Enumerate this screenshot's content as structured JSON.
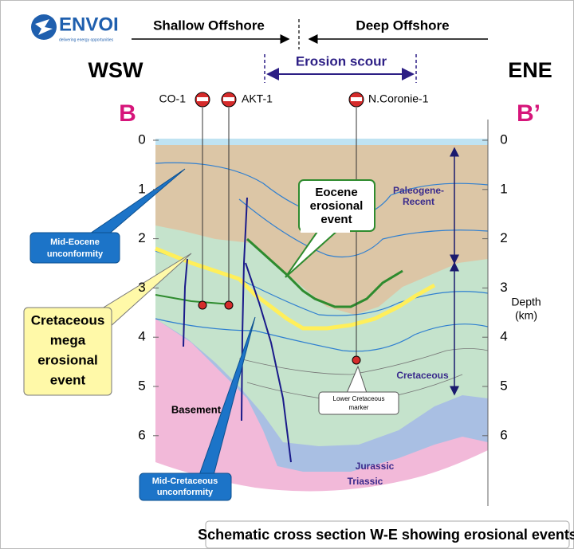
{
  "header": {
    "logo": "ENVOI",
    "tagline": "delivering energy opportunities",
    "shallow": "Shallow Offshore",
    "deep": "Deep Offshore",
    "west": "WSW",
    "east": "ENE",
    "scour": "Erosion scour",
    "section_start": "B",
    "section_end": "B’"
  },
  "wells": [
    {
      "name": "CO-1"
    },
    {
      "name": "AKT-1"
    },
    {
      "name": "N.Coronie-1"
    }
  ],
  "depth_axis": {
    "ticks": [
      0,
      1,
      2,
      3,
      4,
      5,
      6
    ],
    "label": "Depth",
    "unit": "(km)"
  },
  "units": {
    "paleogene": [
      "Paleogene-",
      "Recent"
    ],
    "cretaceous": "Cretaceous",
    "basement": "Basement",
    "jurassic": "Jurassic",
    "triassic": "Triassic"
  },
  "annotations": {
    "mid_eocene": [
      "Mid-Eocene",
      "unconformity"
    ],
    "eocene_event": [
      "Eocene",
      "erosional",
      "event"
    ],
    "cretaceous_event": [
      "Cretaceous",
      "mega",
      "erosional",
      "event"
    ],
    "lower_cretaceous": [
      "Lower Cretaceous",
      "marker"
    ],
    "mid_cretaceous": [
      "Mid-Cretaceous",
      "unconformity"
    ]
  },
  "caption": "Schematic cross section W-E showing erosional events"
}
